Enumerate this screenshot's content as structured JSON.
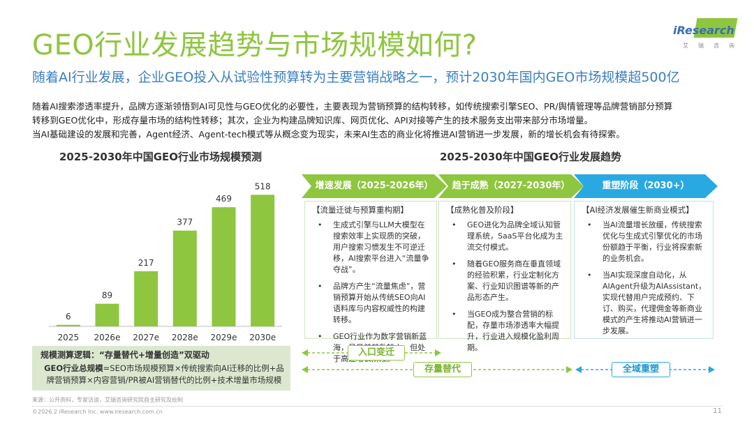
{
  "title": "GEO行业发展趋势与市场规模如何?",
  "subtitle": "随着AI行业发展，企业GEO投入从试验性预算转为主要营销战略之一，预计2030年国内GEO市场规模超500亿",
  "body": [
    "随着AI搜索渗透率提升，品牌方逐渐领悟到AI可见性与GEO优化的必要性，主要表现为营销预算的结构转移，如传统搜索引擎SEO、PR/舆情管理等品牌营销部分预算",
    "转移到GEO优化中，形成存量市场的结构性转移；其次，企业为构建品牌知识库、网页优化、API对接等产生的技术服务支出带来部分市场增量。",
    "当AI基础建设的发展和完善，Agent经济、Agent-tech模式等从概念变为现实，未来AI生态的商业化将推进AI营销进一步发展，新的增长机会有待探索。"
  ],
  "logo": {
    "name": "iResearch",
    "sub": "艾瑞咨询"
  },
  "chart_title": "2025-2030年中国GEO行业市场规模预测",
  "chart_data": {
    "type": "bar",
    "categories": [
      "2025",
      "2026e",
      "2027e",
      "2028e",
      "2029e",
      "2030e"
    ],
    "values": [
      6,
      89,
      217,
      377,
      469,
      518
    ],
    "title": "2025-2030年中国GEO行业市场规模预测",
    "xlabel": "",
    "ylabel": "",
    "ylim": [
      0,
      560
    ],
    "grid": false,
    "bar_color": "#8ec63f"
  },
  "note": {
    "title": "规模测算逻辑：“存量替代+增量创造”双驱动",
    "label": "GEO行业总规模",
    "formula": "=SEO市场规模预算×传统搜索向AI迁移的比例+品牌营销预算×内容营销/PR被AI营销替代的比例+技术增量市场规模"
  },
  "trend_title": "2025-2030年中国GEO行业发展趋势",
  "phases": [
    {
      "label": "增速发展（2025-2026年）",
      "color": "#8ec63f",
      "head": "【流量迁徙与预算重构期】",
      "items": [
        "生成式引擎与LLM大模型在搜索效率上实现质的突破，用户搜索习惯发生不可逆迁移，AI搜索平台进入“流量争夺战”。",
        "品牌方产生“流量焦虑”，营销预算开始从传统SEO向AI语料库与内容权威性的构建转移。",
        "GEO行业作为数字营销新蓝海，虽目前基数较小，但处于高速增长阶段。"
      ]
    },
    {
      "label": "趋于成熟（2027-2030年）",
      "color": "#8ec63f",
      "head": "【成熟化普及阶段】",
      "items": [
        "GEO进化为品牌全域认知管理系统，SaaS平台化成为主流交付模式。",
        "随着GEO服务商在垂直领域的经验积累，行业定制化方案、行业知识图谱等新的产品形态产生。",
        "当GEO成为整合营销的标配，存量市场渗透率大幅提升，行业进入规模化盈利周期。"
      ]
    },
    {
      "label": "重塑阶段（2030+）",
      "color": "#29a9e1",
      "head": "【AI经济发展催生新商业模式】",
      "items": [
        "当AI流量增长放缓，传统搜索优化与生成式引擎优化的市场份额趋于平衡，行业将探索新的业务机会。",
        "当AI实现深度自动化，从AIAgent升级为AIAssistant，实现代替用户完成预约、下订、购买，代理佣金等新商业模式的产生将推动AI营销进一步发展。"
      ]
    }
  ],
  "bottom_labels": {
    "entry": "入口变迁",
    "stock": "存量替代",
    "full": "全域重塑"
  },
  "colors": {
    "green": "#8ec63f",
    "blue": "#29a9e1",
    "title_blue": "#3a7fc1"
  },
  "source": "来源：公开资料，专家访谈，艾瑞咨询研究院自主研究及绘制",
  "copyright": "©2026.2 iResearch Inc. www.iresearch.com.cn",
  "page_number": "11"
}
